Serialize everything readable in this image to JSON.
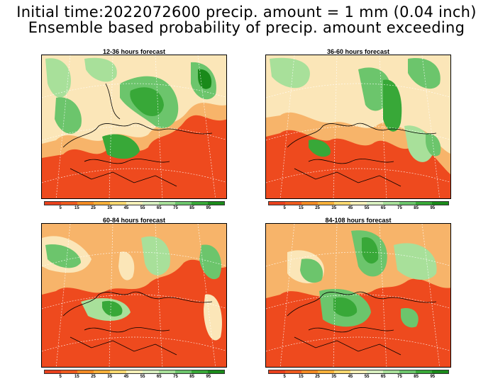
{
  "header": {
    "line1": "Initial time:2022072600 precip. amount = 1 mm (0.04 inch)",
    "line2": "Ensemble based probability of precip. amount exceeding"
  },
  "panels": [
    {
      "title": "12-36 hours forecast"
    },
    {
      "title": "36-60 hours forecast"
    },
    {
      "title": "60-84 hours forecast"
    },
    {
      "title": "84-108 hours forecast"
    }
  ],
  "colorbar": {
    "labels": [
      "5",
      "15",
      "25",
      "35",
      "45",
      "55",
      "65",
      "75",
      "85",
      "95"
    ],
    "colors": [
      "#e8401c",
      "#ee5a1e",
      "#f28a24",
      "#f6b03a",
      "#f8d870",
      "#f5f0b8",
      "#d8efc0",
      "#a8e09a",
      "#6cc56c",
      "#38a838",
      "#1a8a1a"
    ]
  },
  "map_colors": {
    "low": "#ee4a1e",
    "mid": "#f7b46a",
    "light": "#fbe6b8",
    "green_light": "#a8e09a",
    "green": "#38a838",
    "green_dark": "#1a8a1a"
  }
}
